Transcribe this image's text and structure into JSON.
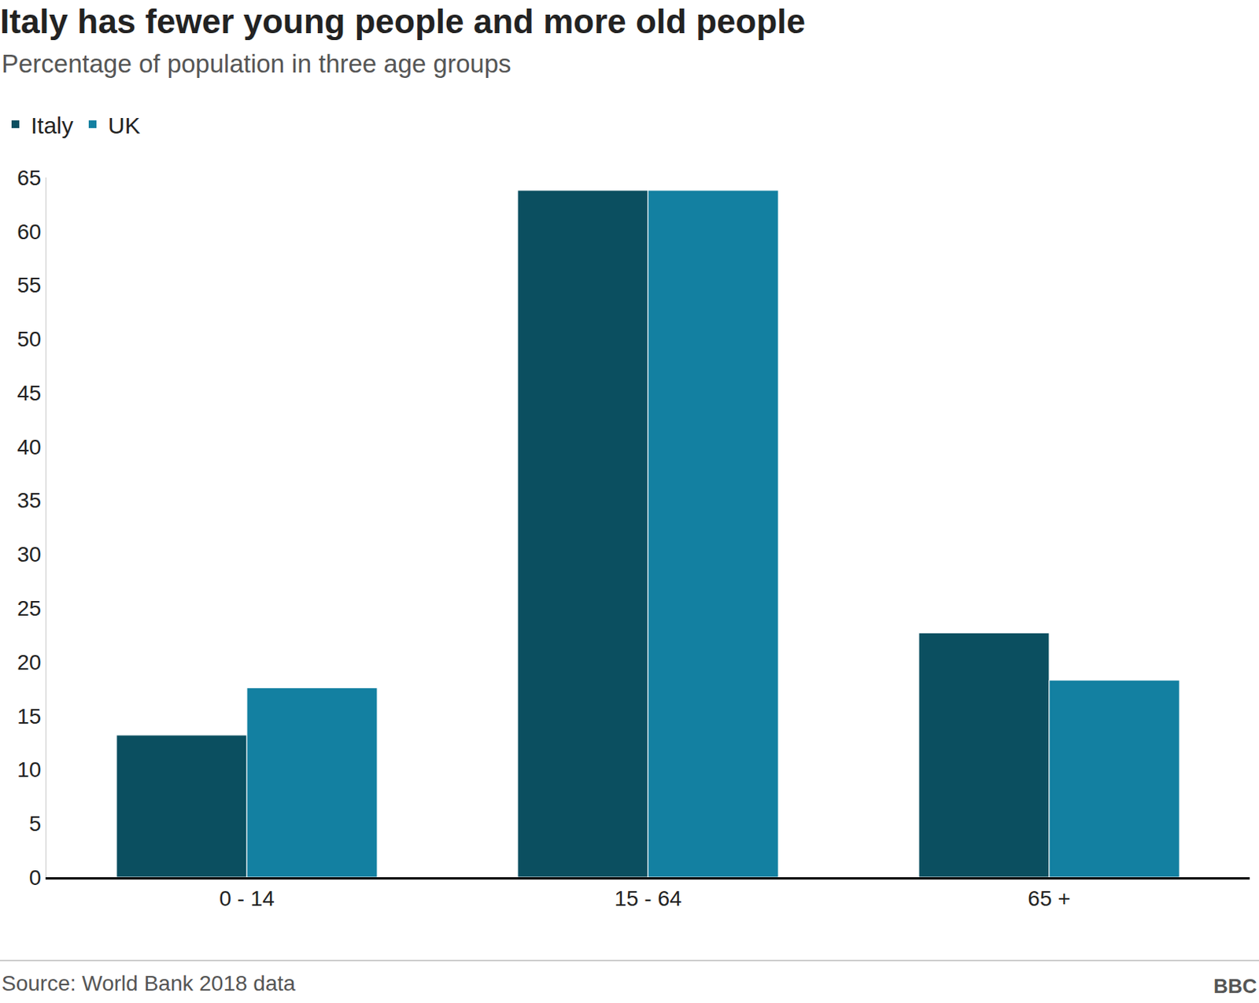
{
  "chart_data": {
    "type": "bar",
    "title": "Italy has fewer young people and more old people",
    "subtitle": "Percentage of population in three age groups",
    "categories": [
      "0 - 14",
      "15 - 64",
      "65 +"
    ],
    "series": [
      {
        "name": "Italy",
        "color": "#0b4f60",
        "values": [
          13.2,
          63.8,
          22.7
        ]
      },
      {
        "name": "UK",
        "color": "#1380a1",
        "values": [
          17.6,
          63.8,
          18.3
        ]
      }
    ],
    "ylim": [
      0,
      65
    ],
    "yticks": [
      0,
      5,
      10,
      15,
      20,
      25,
      30,
      35,
      40,
      45,
      50,
      55,
      60,
      65
    ],
    "grid": false,
    "legend": "top-left",
    "source": "Source: World Bank 2018 data",
    "logo": "BBC"
  }
}
